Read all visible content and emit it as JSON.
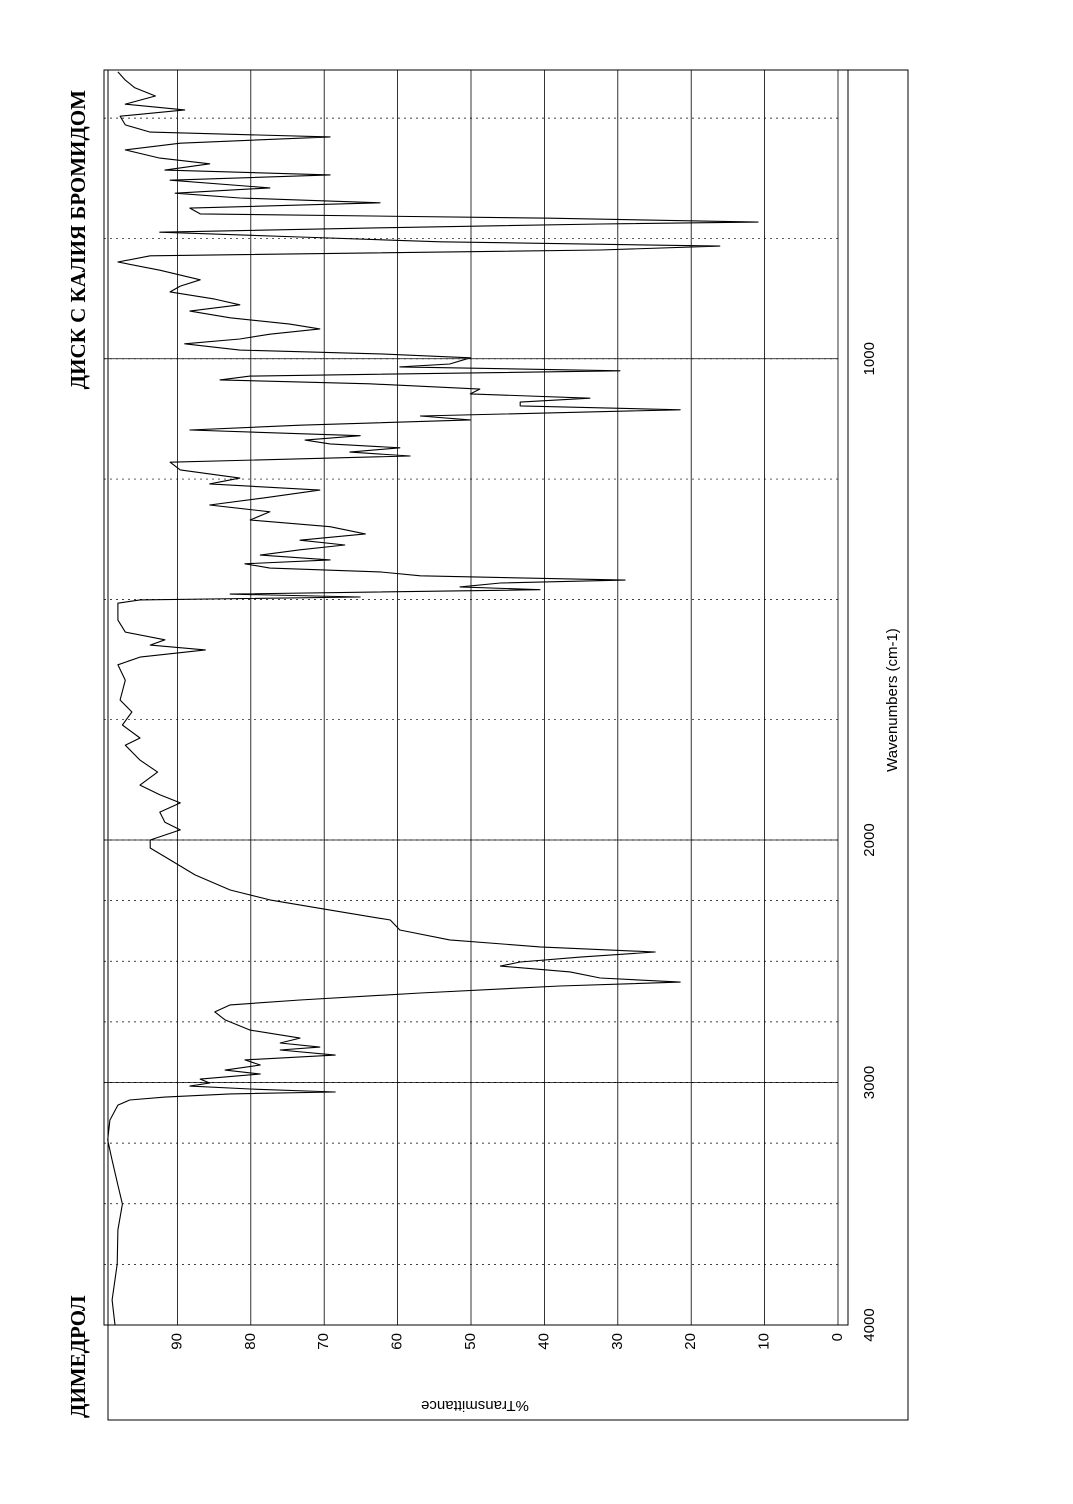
{
  "chart_data": {
    "type": "line",
    "title": "ДИМЕДРОЛ",
    "subtitle": "ДИСК С КАЛИЯ БРОМИДОМ",
    "x_label": "Wavenumbers (cm-1)",
    "y_label": "%Transmittance",
    "x": [
      4000,
      3897,
      3749,
      3608,
      3501,
      3423,
      3320,
      3237,
      3155,
      3093,
      3072,
      3060,
      3047,
      3039,
      3027,
      3015,
      3002,
      2986,
      2965,
      2949,
      2928,
      2907,
      2887,
      2866,
      2854,
      2837,
      2817,
      2784,
      2742,
      2709,
      2680,
      2660,
      2631,
      2602,
      2586,
      2569,
      2544,
      2520,
      2503,
      2483,
      2462,
      2441,
      2412,
      2371,
      2330,
      2289,
      2247,
      2206,
      2144,
      2082,
      2033,
      2000,
      1979,
      1963,
      1942,
      1923,
      1906,
      1886,
      1859,
      1834,
      1803,
      1788,
      1761,
      1734,
      1709,
      1668,
      1636,
      1620,
      1605,
      1595,
      1584,
      1568,
      1543,
      1508,
      1501,
      1495,
      1489,
      1480,
      1474,
      1466,
      1460,
      1451,
      1443,
      1435,
      1426,
      1418,
      1408,
      1397,
      1387,
      1377,
      1364,
      1349,
      1335,
      1318,
      1304,
      1289,
      1273,
      1260,
      1248,
      1231,
      1215,
      1202,
      1194,
      1185,
      1177,
      1169,
      1160,
      1148,
      1138,
      1127,
      1119,
      1106,
      1098,
      1090,
      1082,
      1073,
      1063,
      1052,
      1044,
      1036,
      1025,
      1017,
      1011,
      998,
      990,
      982,
      969,
      959,
      949,
      938,
      928,
      915,
      901,
      888,
      876,
      861,
      849,
      836,
      816,
      799,
      786,
      774,
      766,
      757,
      747,
      737,
      728,
      720,
      716,
      708,
      699,
      687,
      676,
      666,
      656,
      645,
      629,
      618,
      608,
      595,
      583,
      566,
      552,
      539,
      529,
      514,
      496,
      483,
      471,
      454,
      437,
      421,
      404
    ],
    "series": [
      {
        "color": "#000000",
        "values": [
          98.5,
          98.9,
          98.2,
          98.1,
          97.5,
          98.1,
          98.9,
          99.5,
          99.2,
          98.1,
          96.5,
          91.7,
          82.8,
          68.5,
          80.1,
          88.3,
          85.6,
          86.9,
          78.7,
          83.5,
          78.7,
          80.8,
          68.5,
          76,
          70.6,
          76,
          73.3,
          80.1,
          83.5,
          84.9,
          82.8,
          73.3,
          56.9,
          37.9,
          21.5,
          32.4,
          36.5,
          46,
          43.3,
          35.1,
          24.9,
          40.6,
          52.9,
          59.7,
          61,
          69.2,
          77.4,
          82.8,
          87.6,
          91,
          93.7,
          93.7,
          89.6,
          91.7,
          92.4,
          89.6,
          92.4,
          95.1,
          92.7,
          95.1,
          97.1,
          95.1,
          97.5,
          96.2,
          97.8,
          97.1,
          98.1,
          95.1,
          86.2,
          93.7,
          91.7,
          97.1,
          98.1,
          98.1,
          95.1,
          65.1,
          82.8,
          40.6,
          51.5,
          46,
          29,
          56.9,
          62.4,
          77.4,
          80.8,
          69.2,
          78.7,
          73.3,
          67.2,
          73.3,
          64.4,
          69.2,
          80.1,
          77.4,
          85.6,
          78.1,
          70.6,
          85.6,
          81.5,
          89.6,
          91,
          58.3,
          66.5,
          59.7,
          69.2,
          72.6,
          65.1,
          88.3,
          73.3,
          50.1,
          56.9,
          21.5,
          43.3,
          43.3,
          33.8,
          50.1,
          48.8,
          63.8,
          84.2,
          80.1,
          29.7,
          59.7,
          52.9,
          50.1,
          62.4,
          81.5,
          89,
          81.5,
          77.4,
          70.6,
          74.7,
          82.8,
          88.3,
          81.5,
          84.9,
          91,
          89.6,
          86.9,
          92.4,
          98.1,
          93.7,
          32.4,
          16.1,
          54.2,
          73.3,
          92.4,
          62.4,
          32.4,
          10.9,
          39.2,
          86.9,
          88.3,
          62.4,
          81.5,
          90.3,
          77.4,
          91,
          69.2,
          91.7,
          85.6,
          92.4,
          97.1,
          89.6,
          69.2,
          93.7,
          97.1,
          97.8,
          89,
          97.1,
          93,
          95.8,
          97.1,
          98.1
        ]
      }
    ],
    "xlim": [
      4000,
      400
    ],
    "ylim": [
      0,
      100
    ],
    "xticks": [
      4000,
      3000,
      2000,
      1000
    ],
    "yticks": [
      0,
      10,
      20,
      30,
      40,
      50,
      60,
      70,
      80,
      90
    ],
    "x_scale_break": 2000,
    "grid": true
  }
}
